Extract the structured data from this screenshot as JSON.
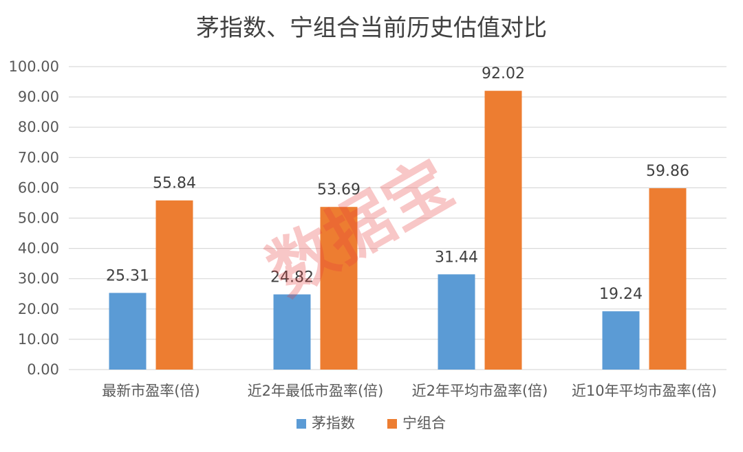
{
  "chart_data": {
    "type": "bar",
    "title": "茅指数、宁组合当前历史估值对比",
    "categories": [
      "最新市盈率(倍)",
      "近2年最低市盈率(倍)",
      "近2年平均市盈率(倍)",
      "近10年平均市盈率(倍)"
    ],
    "series": [
      {
        "name": "茅指数",
        "color": "#5b9bd5",
        "values": [
          25.31,
          24.82,
          31.44,
          19.24
        ]
      },
      {
        "name": "宁组合",
        "color": "#ed7d31",
        "values": [
          55.84,
          53.69,
          92.02,
          59.86
        ]
      }
    ],
    "data_labels": [
      [
        "25.31",
        "24.82",
        "31.44",
        "19.24"
      ],
      [
        "55.84",
        "53.69",
        "92.02",
        "59.86"
      ]
    ],
    "yticks": [
      "0.00",
      "10.00",
      "20.00",
      "30.00",
      "40.00",
      "50.00",
      "60.00",
      "70.00",
      "80.00",
      "90.00",
      "100.00"
    ],
    "ylim": [
      0,
      100
    ],
    "grid": true,
    "legend": "bottom-center",
    "watermark": "数据宝"
  }
}
